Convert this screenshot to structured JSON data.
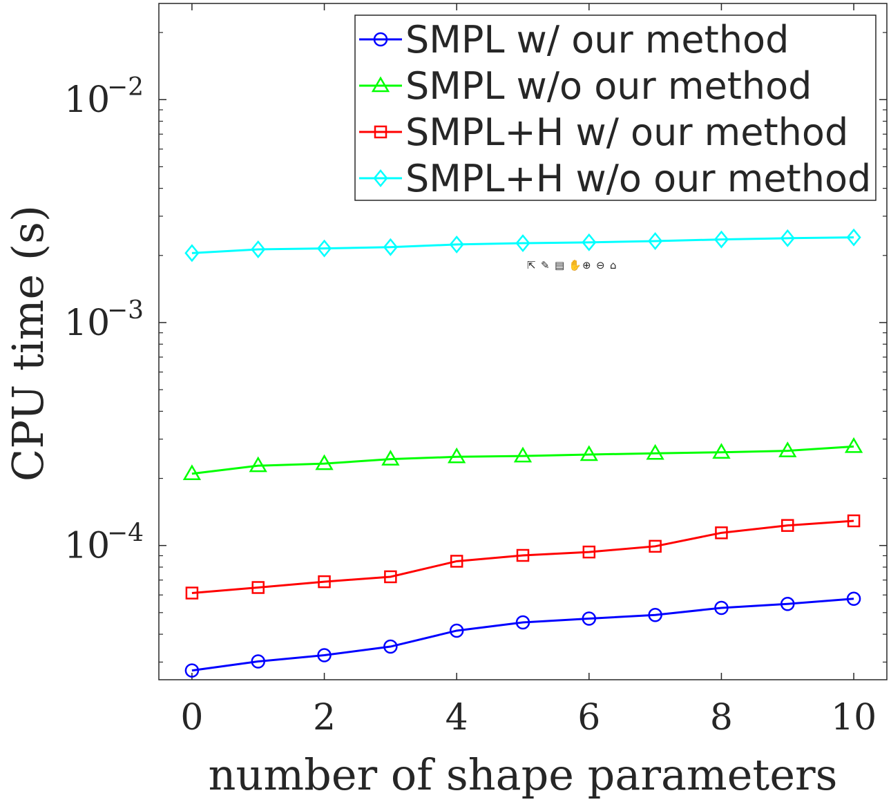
{
  "chart_data": {
    "type": "line",
    "xlabel": "number of shape parameters",
    "ylabel": "CPU time (s)",
    "yscale": "log",
    "xlim": [
      -0.5,
      10.5
    ],
    "ylim": [
      2.5e-05,
      0.027
    ],
    "x": [
      0,
      1,
      2,
      3,
      4,
      5,
      6,
      7,
      8,
      9,
      10
    ],
    "xticks": [
      {
        "value": 0,
        "label": "0"
      },
      {
        "value": 2,
        "label": "2"
      },
      {
        "value": 4,
        "label": "4"
      },
      {
        "value": 6,
        "label": "6"
      },
      {
        "value": 8,
        "label": "8"
      },
      {
        "value": 10,
        "label": "10"
      }
    ],
    "yticks": [
      {
        "value": 0.01,
        "base": "10",
        "exp": "−2"
      },
      {
        "value": 0.001,
        "base": "10",
        "exp": "−3"
      },
      {
        "value": 0.0001,
        "base": "10",
        "exp": "−4"
      }
    ],
    "legend_position": "top-right",
    "series": [
      {
        "name": "SMPL w/ our method",
        "color": "#0000ff",
        "marker": "circle",
        "values": [
          2.75e-05,
          3.02e-05,
          3.22e-05,
          3.52e-05,
          4.15e-05,
          4.52e-05,
          4.7e-05,
          4.88e-05,
          5.25e-05,
          5.47e-05,
          5.77e-05
        ]
      },
      {
        "name": "SMPL w/o our method",
        "color": "#00ff00",
        "marker": "triangle",
        "values": [
          0.00021,
          0.000228,
          0.000233,
          0.000244,
          0.00025,
          0.000252,
          0.000256,
          0.000259,
          0.000262,
          0.000266,
          0.000278
        ]
      },
      {
        "name": "SMPL+H w/ our method",
        "color": "#ff0000",
        "marker": "square",
        "values": [
          6.12e-05,
          6.48e-05,
          6.88e-05,
          7.24e-05,
          8.5e-05,
          9.03e-05,
          9.35e-05,
          9.92e-05,
          0.000114,
          0.000123,
          0.000129
        ]
      },
      {
        "name": "SMPL+H w/o our method",
        "color": "#00ffff",
        "marker": "diamond",
        "values": [
          0.00205,
          0.00213,
          0.00215,
          0.00218,
          0.00224,
          0.00227,
          0.00229,
          0.00232,
          0.00236,
          0.00239,
          0.00241
        ]
      }
    ]
  }
}
